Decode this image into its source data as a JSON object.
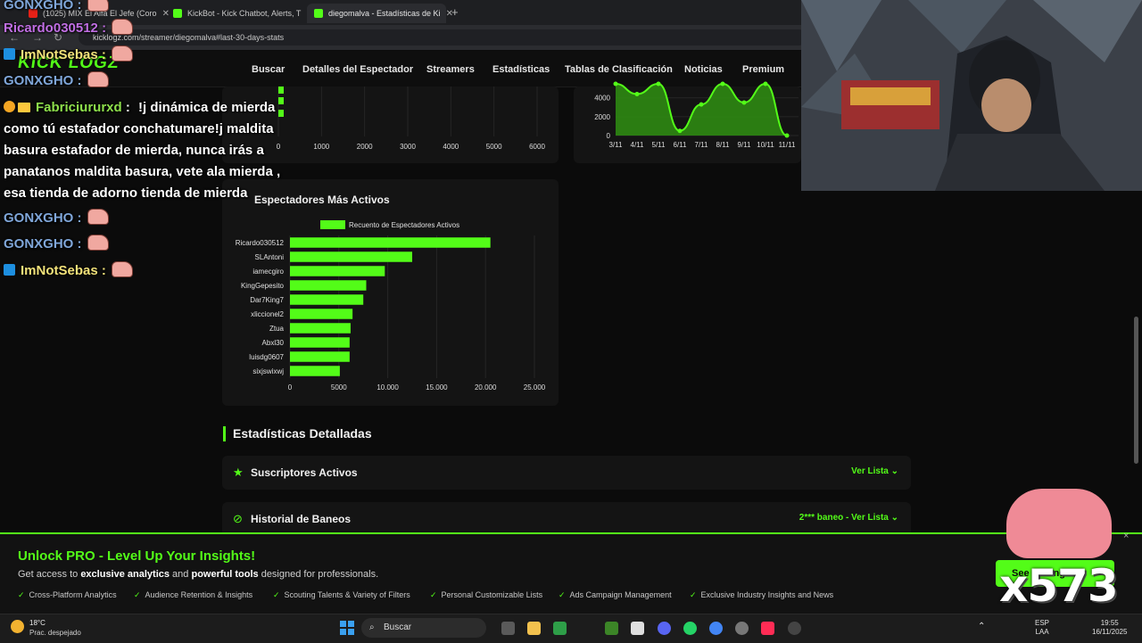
{
  "browser": {
    "tabs": [
      {
        "title": "(1025) MIX El Alfa El Jefe (Coro",
        "color": "#e62117"
      },
      {
        "title": "KickBot - Kick Chatbot, Alerts, T",
        "color": "#53fc18"
      },
      {
        "title": "diegomalva - Estadísticas de Ki",
        "color": "#53fc18"
      }
    ],
    "new_tab": "+",
    "url": "kicklogz.com/streamer/diegomalva#last-30-days-stats"
  },
  "site": {
    "logo": "KICK LOGZ",
    "nav": [
      "Buscar",
      "Detalles del Espectador",
      "Streamers",
      "Estadísticas",
      "Tablas de Clasificación",
      "Noticias",
      "Premium"
    ]
  },
  "chart_data": [
    {
      "type": "bar",
      "orientation": "horizontal",
      "partial": true,
      "x_ticks": [
        "0",
        "1000",
        "2000",
        "3000",
        "4000",
        "5000",
        "6000"
      ],
      "xlim": [
        0,
        6000
      ]
    },
    {
      "type": "area",
      "partial": true,
      "categories": [
        "3/11",
        "4/11",
        "5/11",
        "6/11",
        "7/11",
        "8/11",
        "9/11",
        "10/11",
        "11/11"
      ],
      "values": [
        6000,
        4400,
        6000,
        500,
        3300,
        5900,
        3500,
        5600,
        0
      ],
      "y_ticks": [
        "0",
        "2000",
        "4000"
      ],
      "ylim": [
        0,
        5200
      ],
      "color": "#53fc18"
    },
    {
      "type": "bar",
      "orientation": "horizontal",
      "title": "Espectadores Más Activos",
      "legend": "Recuento de Espectadores Activos",
      "categories": [
        "Ricardo030512",
        "SLAntoni",
        "iamecgiro",
        "KingGepesito",
        "Dar7King7",
        "xliccionel2",
        "Ztua",
        "Abxl30",
        "luisdg0607",
        "sixjswixwj"
      ],
      "values": [
        20500,
        12500,
        9700,
        7800,
        7500,
        6400,
        6200,
        6100,
        6100,
        5100
      ],
      "x_ticks": [
        "0",
        "5000",
        "10.000",
        "15.000",
        "20.000",
        "25.000"
      ],
      "xlim": [
        0,
        25000
      ],
      "color": "#53fc18"
    }
  ],
  "detailed": {
    "title": "Estadísticas Detalladas",
    "items": [
      {
        "label": "Suscriptores Activos",
        "action": "Ver Lista ⌄"
      },
      {
        "label": "Historial de Baneos",
        "action": "2*** baneo - Ver Lista ⌄"
      }
    ]
  },
  "promo": {
    "title": "Unlock PRO - Level Up Your Insights!",
    "sub_1": "Get access to ",
    "sub_bold_1": "exclusive analytics",
    "sub_2": " and ",
    "sub_bold_2": "powerful tools",
    "sub_3": " designed for professionals.",
    "features": [
      "Cross-Platform Analytics",
      "Audience Retention & Insights",
      "Scouting Talents & Variety of Filters",
      "Personal Customizable Lists",
      "Ads Campaign Management",
      "Exclusive Industry Insights and News"
    ],
    "button": "See Pricing",
    "close": "×"
  },
  "taskbar": {
    "temp": "18°C",
    "weather": "Prac. despejado",
    "search": "Buscar",
    "lang_1": "ESP",
    "lang_2": "LAA",
    "time": "19:55",
    "date": "16/11/2025"
  },
  "overlay": {
    "chat": [
      {
        "user": "GONXGHO",
        "sep": " :",
        "color": "#7fa6d9",
        "badge": "none"
      },
      {
        "user": "Ricardo030512",
        "sep": " :",
        "color": "#c06ee3",
        "badge": "none"
      },
      {
        "user": "ImNotSebas",
        "sep": " :",
        "color": "#f2e27a",
        "badge": "sq"
      },
      {
        "user": "GONXGHO",
        "sep": " :",
        "color": "#7fa6d9",
        "badge": "none"
      },
      {
        "user": "Fabriciururxd",
        "sep": " :",
        "color": "#8ee04c",
        "badge": "crown"
      },
      {
        "user": "GONXGHO",
        "sep": " :",
        "color": "#7fa6d9",
        "badge": "none"
      },
      {
        "user": "GONXGHO",
        "sep": " :",
        "color": "#7fa6d9",
        "badge": "none"
      },
      {
        "user": "ImNotSebas",
        "sep": " :",
        "color": "#f2e27a",
        "badge": "sq"
      }
    ],
    "message_lines": [
      "!j dinámica de mierda",
      "como tú estafador conchatumare!j maldita",
      "basura estafador de mierda, nunca irás a",
      "panatanos maldita basura, vete ala mierda ,",
      "esa tienda de adorno tienda de mierda"
    ],
    "counter": "x573"
  }
}
